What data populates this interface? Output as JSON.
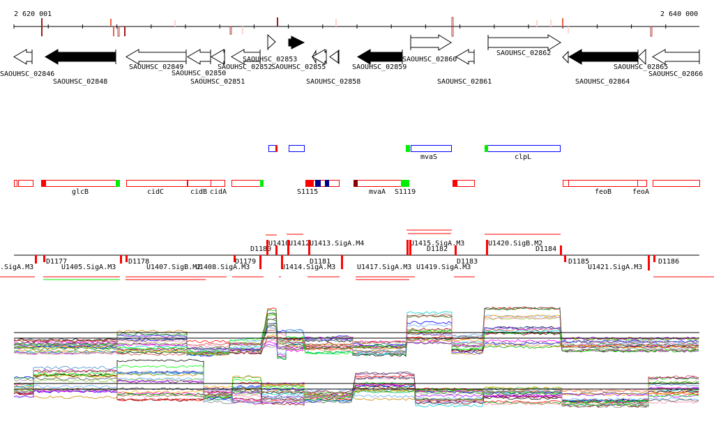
{
  "axis": {
    "start_label": "2 620 001",
    "end_label": "2 640 000",
    "start_bp": 2620001,
    "end_bp": 2640000
  },
  "genes": [
    {
      "name": "SAOUHSC_02846",
      "strand": "-",
      "fill": "open"
    },
    {
      "name": "SAOUHSC_02848",
      "strand": "-",
      "fill": "filled"
    },
    {
      "name": "SAOUHSC_02849",
      "strand": "-",
      "fill": "open"
    },
    {
      "name": "SAOUHSC_02850",
      "strand": "-",
      "fill": "open"
    },
    {
      "name": "SAOUHSC_02851",
      "strand": "-",
      "fill": "open"
    },
    {
      "name": "SAOUHSC_02852",
      "strand": "-",
      "fill": "open"
    },
    {
      "name": "SAOUHSC_02853",
      "strand": "+",
      "fill": "open"
    },
    {
      "name": "SAOUHSC_02855",
      "strand": "-",
      "fill": "open"
    },
    {
      "name": "SAOUHSC_02858",
      "strand": "-",
      "fill": "open"
    },
    {
      "name": "SAOUHSC_02859",
      "strand": "-",
      "fill": "filled"
    },
    {
      "name": "SAOUHSC_02860",
      "strand": "+",
      "fill": "open"
    },
    {
      "name": "SAOUHSC_02861",
      "strand": "-",
      "fill": "open"
    },
    {
      "name": "SAOUHSC_02862",
      "strand": "+",
      "fill": "open"
    },
    {
      "name": "SAOUHSC_02864",
      "strand": "-",
      "fill": "filled"
    },
    {
      "name": "SAOUHSC_02865",
      "strand": "-",
      "fill": "open"
    },
    {
      "name": "SAOUHSC_02866",
      "strand": "-",
      "fill": "open"
    }
  ],
  "features_top": [
    "mvaS",
    "clpL"
  ],
  "features_bottom": [
    "glcB",
    "cidC",
    "cidB",
    "cidA",
    "S1115",
    "mvaA",
    "S1119",
    "feoB",
    "feoA"
  ],
  "operons_upper": [
    "D1180",
    "U1410",
    "U1412",
    "U1413.SigA.M4",
    "U1415.SigA.M3",
    "D1182",
    "U1420.SigB.M2",
    "D1184"
  ],
  "operons_lower": [
    ".SigA.M3",
    "D1177",
    "U1405.SigA.M3",
    "D1178",
    "U1407.SigB.M2",
    "U1408.SigA.M3",
    "D1179",
    "U1414.SigA.M3",
    "D1181",
    "U1417.SigA.M3",
    "U1419.SigA.M3",
    "D1183",
    "D1185",
    "U1421.SigA.M3",
    "D1186"
  ],
  "colors": {
    "gene": "#000000",
    "feature": "#ff0000",
    "feature_alt": "#0000ff",
    "start": "#00ee00",
    "operon": "#ff0000"
  }
}
